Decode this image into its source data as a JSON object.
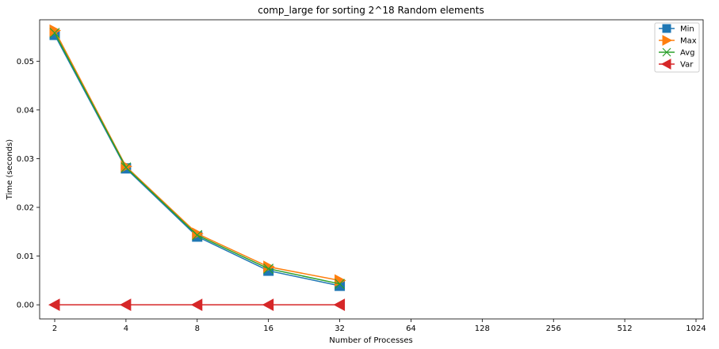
{
  "chart_data": {
    "type": "line",
    "title": "comp_large for sorting 2^18 Random elements",
    "xlabel": "Number of Processes",
    "ylabel": "Time (seconds)",
    "x_categories": [
      "2",
      "4",
      "8",
      "16",
      "32",
      "64",
      "128",
      "256",
      "512",
      "1024"
    ],
    "x_scale": "log2",
    "ylim": [
      -0.0029,
      0.0585
    ],
    "yticks": [
      "0.00",
      "0.01",
      "0.02",
      "0.03",
      "0.04",
      "0.05"
    ],
    "grid": false,
    "legend_position": "top-right",
    "series": [
      {
        "name": "Min",
        "color": "#1f77b4",
        "marker": "square",
        "x": [
          2,
          4,
          8,
          16,
          32
        ],
        "values": [
          0.0554,
          0.028,
          0.014,
          0.007,
          0.0039
        ]
      },
      {
        "name": "Max",
        "color": "#ff7f0e",
        "marker": "triangle-right",
        "x": [
          2,
          4,
          8,
          16,
          32
        ],
        "values": [
          0.0563,
          0.0284,
          0.0146,
          0.0078,
          0.005
        ]
      },
      {
        "name": "Avg",
        "color": "#2ca02c",
        "marker": "x",
        "x": [
          2,
          4,
          8,
          16,
          32
        ],
        "values": [
          0.0558,
          0.0282,
          0.0143,
          0.0074,
          0.0043
        ]
      },
      {
        "name": "Var",
        "color": "#d62728",
        "marker": "triangle-left",
        "x": [
          2,
          4,
          8,
          16,
          32
        ],
        "values": [
          0.0,
          0.0,
          0.0,
          0.0,
          0.0
        ]
      }
    ]
  }
}
